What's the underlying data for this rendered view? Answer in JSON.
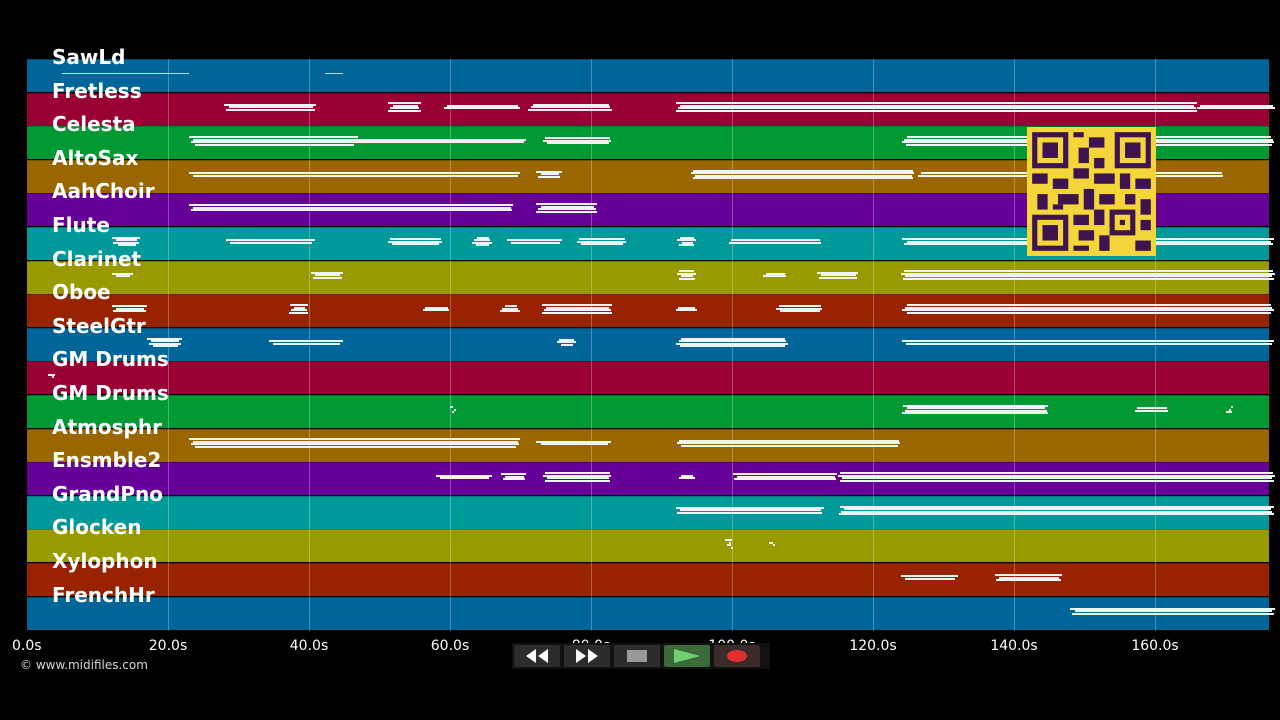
{
  "tracks": [
    {
      "label": "SawLd",
      "color": "#006699"
    },
    {
      "label": "Fretless",
      "color": "#990033"
    },
    {
      "label": "Celesta",
      "color": "#009933"
    },
    {
      "label": "AltoSax",
      "color": "#996600"
    },
    {
      "label": "AahChoir",
      "color": "#660099"
    },
    {
      "label": "Flute",
      "color": "#009999"
    },
    {
      "label": "Clarinet",
      "color": "#999900"
    },
    {
      "label": "Oboe",
      "color": "#992200"
    },
    {
      "label": "SteelGtr",
      "color": "#006699"
    },
    {
      "label": "GM Drums",
      "color": "#990033"
    },
    {
      "label": "GM Drums",
      "color": "#009933"
    },
    {
      "label": "Atmosphr",
      "color": "#996600"
    },
    {
      "label": "Ensmble2",
      "color": "#660099"
    },
    {
      "label": "GrandPno",
      "color": "#009999"
    },
    {
      "label": "Glocken",
      "color": "#999900"
    },
    {
      "label": "Xylophon",
      "color": "#992200"
    },
    {
      "label": "FrenchHr",
      "color": "#006699"
    }
  ],
  "timeline": {
    "ticks": [
      "0.0s",
      "20.0s",
      "40.0s",
      "60.0s",
      "80.0s",
      "100.0s",
      "120.0s",
      "140.0s",
      "160.0s"
    ],
    "tick_seconds": [
      0,
      20,
      40,
      60,
      80,
      100,
      120,
      140,
      160
    ]
  },
  "transport": {
    "rewind_icon": "rewind-icon",
    "forward_icon": "fast-forward-icon",
    "stop_icon": "stop-icon",
    "play_icon": "play-icon",
    "record_icon": "record-icon"
  },
  "copyright": "© www.midifiles.com",
  "qr_code": {
    "label": "qr-code"
  },
  "notes": [
    [
      [
        5,
        23,
        "d"
      ],
      [
        42,
        45,
        "d"
      ]
    ],
    [
      [
        28,
        41
      ],
      [
        51,
        56
      ],
      [
        59,
        70
      ],
      [
        71,
        83
      ],
      [
        92,
        166
      ],
      [
        166,
        177
      ]
    ],
    [
      [
        23,
        47
      ],
      [
        45,
        71
      ],
      [
        73,
        83
      ],
      [
        124,
        177
      ]
    ],
    [
      [
        23,
        70
      ],
      [
        72,
        76
      ],
      [
        94,
        126
      ],
      [
        126,
        170
      ]
    ],
    [
      [
        23,
        69
      ],
      [
        72,
        81
      ]
    ],
    [
      [
        12,
        16
      ],
      [
        28,
        41
      ],
      [
        51,
        59
      ],
      [
        63,
        66
      ],
      [
        68,
        76
      ],
      [
        78,
        85
      ],
      [
        92,
        95
      ],
      [
        99,
        113
      ],
      [
        124,
        177
      ]
    ],
    [
      [
        12,
        15
      ],
      [
        40,
        45
      ],
      [
        92,
        95
      ],
      [
        104,
        108
      ],
      [
        112,
        118
      ],
      [
        124,
        177
      ]
    ],
    [
      [
        12,
        17
      ],
      [
        37,
        40
      ],
      [
        56,
        60
      ],
      [
        67,
        70
      ],
      [
        73,
        83
      ],
      [
        92,
        95
      ],
      [
        106,
        113
      ],
      [
        124,
        177
      ]
    ],
    [
      [
        17,
        22
      ],
      [
        34,
        45
      ],
      [
        75,
        78
      ],
      [
        92,
        108
      ],
      [
        124,
        177
      ]
    ],
    [
      [
        3,
        4
      ]
    ],
    [
      [
        60,
        60.4
      ],
      [
        124,
        145
      ],
      [
        157,
        162
      ],
      [
        170,
        171
      ]
    ],
    [
      [
        23,
        70
      ],
      [
        72,
        83
      ],
      [
        92,
        124
      ]
    ],
    [
      [
        58,
        66
      ],
      [
        67,
        71
      ],
      [
        73,
        83
      ],
      [
        92,
        95
      ],
      [
        100,
        115
      ],
      [
        115,
        177
      ]
    ],
    [
      [
        92,
        113
      ],
      [
        115,
        177
      ]
    ],
    [
      [
        99,
        100
      ],
      [
        105,
        106
      ]
    ],
    [
      [
        124,
        132
      ],
      [
        137,
        147
      ]
    ],
    [
      [
        148,
        177
      ]
    ]
  ]
}
